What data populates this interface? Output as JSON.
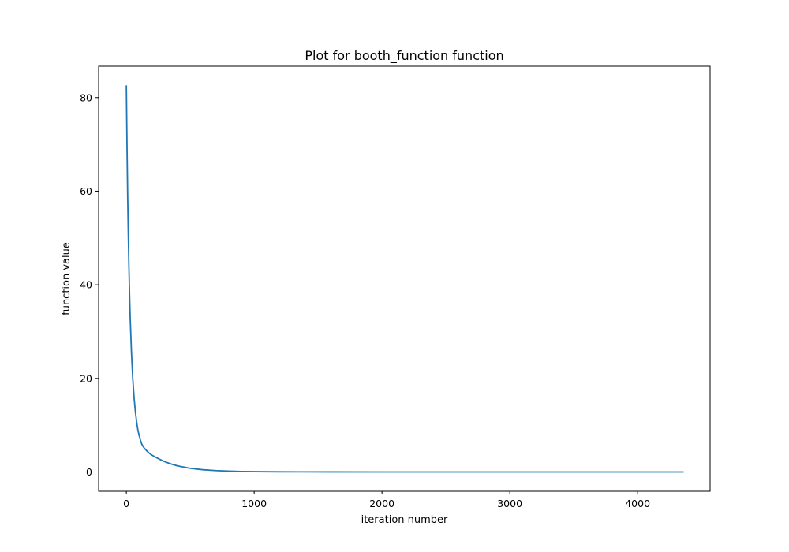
{
  "chart_data": {
    "type": "line",
    "title": "Plot for booth_function function",
    "xlabel": "iteration number",
    "ylabel": "function value",
    "xlim": [
      -217,
      4567
    ],
    "ylim": [
      -4.13,
      86.7
    ],
    "x_ticks": [
      0,
      1000,
      2000,
      3000,
      4000
    ],
    "y_ticks": [
      0,
      20,
      40,
      60,
      80
    ],
    "grid": false,
    "series": [
      {
        "color": "#1f77b4",
        "x": [
          0,
          5,
          10,
          15,
          20,
          25,
          30,
          40,
          50,
          60,
          70,
          80,
          90,
          100,
          110,
          120,
          130,
          140,
          160,
          180,
          200,
          250,
          300,
          350,
          400,
          500,
          600,
          700,
          800,
          900,
          1000,
          1200,
          1400,
          1600,
          2000,
          2500,
          3000,
          3500,
          4000,
          4360
        ],
        "y": [
          82.6,
          70.0,
          59.5,
          51.0,
          44.0,
          38.0,
          33.0,
          25.5,
          20.0,
          16.0,
          13.0,
          10.8,
          9.0,
          7.8,
          6.8,
          6.0,
          5.5,
          5.1,
          4.5,
          4.0,
          3.6,
          2.85,
          2.2,
          1.7,
          1.3,
          0.78,
          0.47,
          0.29,
          0.18,
          0.11,
          0.07,
          0.03,
          0.015,
          0.008,
          0.002,
          0.001,
          0.0005,
          0.0002,
          0.0001,
          0.0
        ]
      }
    ]
  }
}
